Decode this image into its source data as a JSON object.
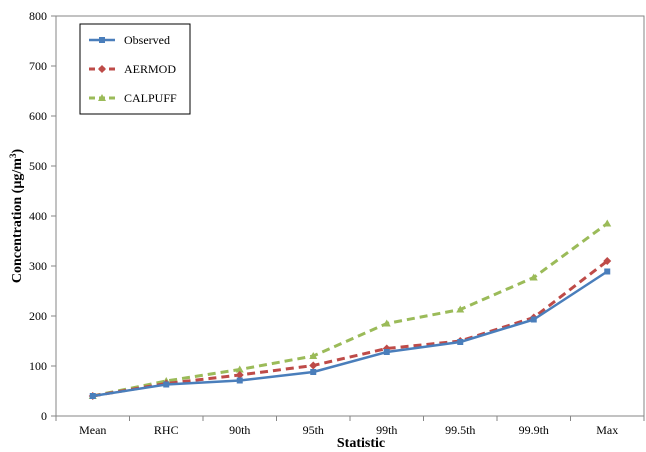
{
  "chart_data": {
    "type": "line",
    "title": "",
    "xlabel": "Statistic",
    "ylabel": "Concentration (µg/m",
    "ylabel_superscript": "3",
    "ylabel_close": ")",
    "categories": [
      "Mean",
      "RHC",
      "90th",
      "95th",
      "99th",
      "99.5th",
      "99.9th",
      "Max"
    ],
    "ylim": [
      0,
      800
    ],
    "yticks": [
      0,
      100,
      200,
      300,
      400,
      500,
      600,
      700,
      800
    ],
    "grid": false,
    "legend_position": "top-left",
    "series": [
      {
        "name": "Observed",
        "color": "#4a7ebb",
        "dash": "solid",
        "marker": "square",
        "values": [
          40,
          63,
          71,
          88,
          128,
          148,
          193,
          289
        ]
      },
      {
        "name": "AERMOD",
        "color": "#be4b48",
        "dash": "dashed",
        "marker": "diamond",
        "values": [
          40,
          65,
          82,
          101,
          135,
          150,
          197,
          310
        ]
      },
      {
        "name": "CALPUFF",
        "color": "#9bbb59",
        "dash": "dashed",
        "marker": "triangle",
        "values": [
          40,
          70,
          93,
          120,
          185,
          213,
          277,
          385
        ]
      }
    ]
  }
}
